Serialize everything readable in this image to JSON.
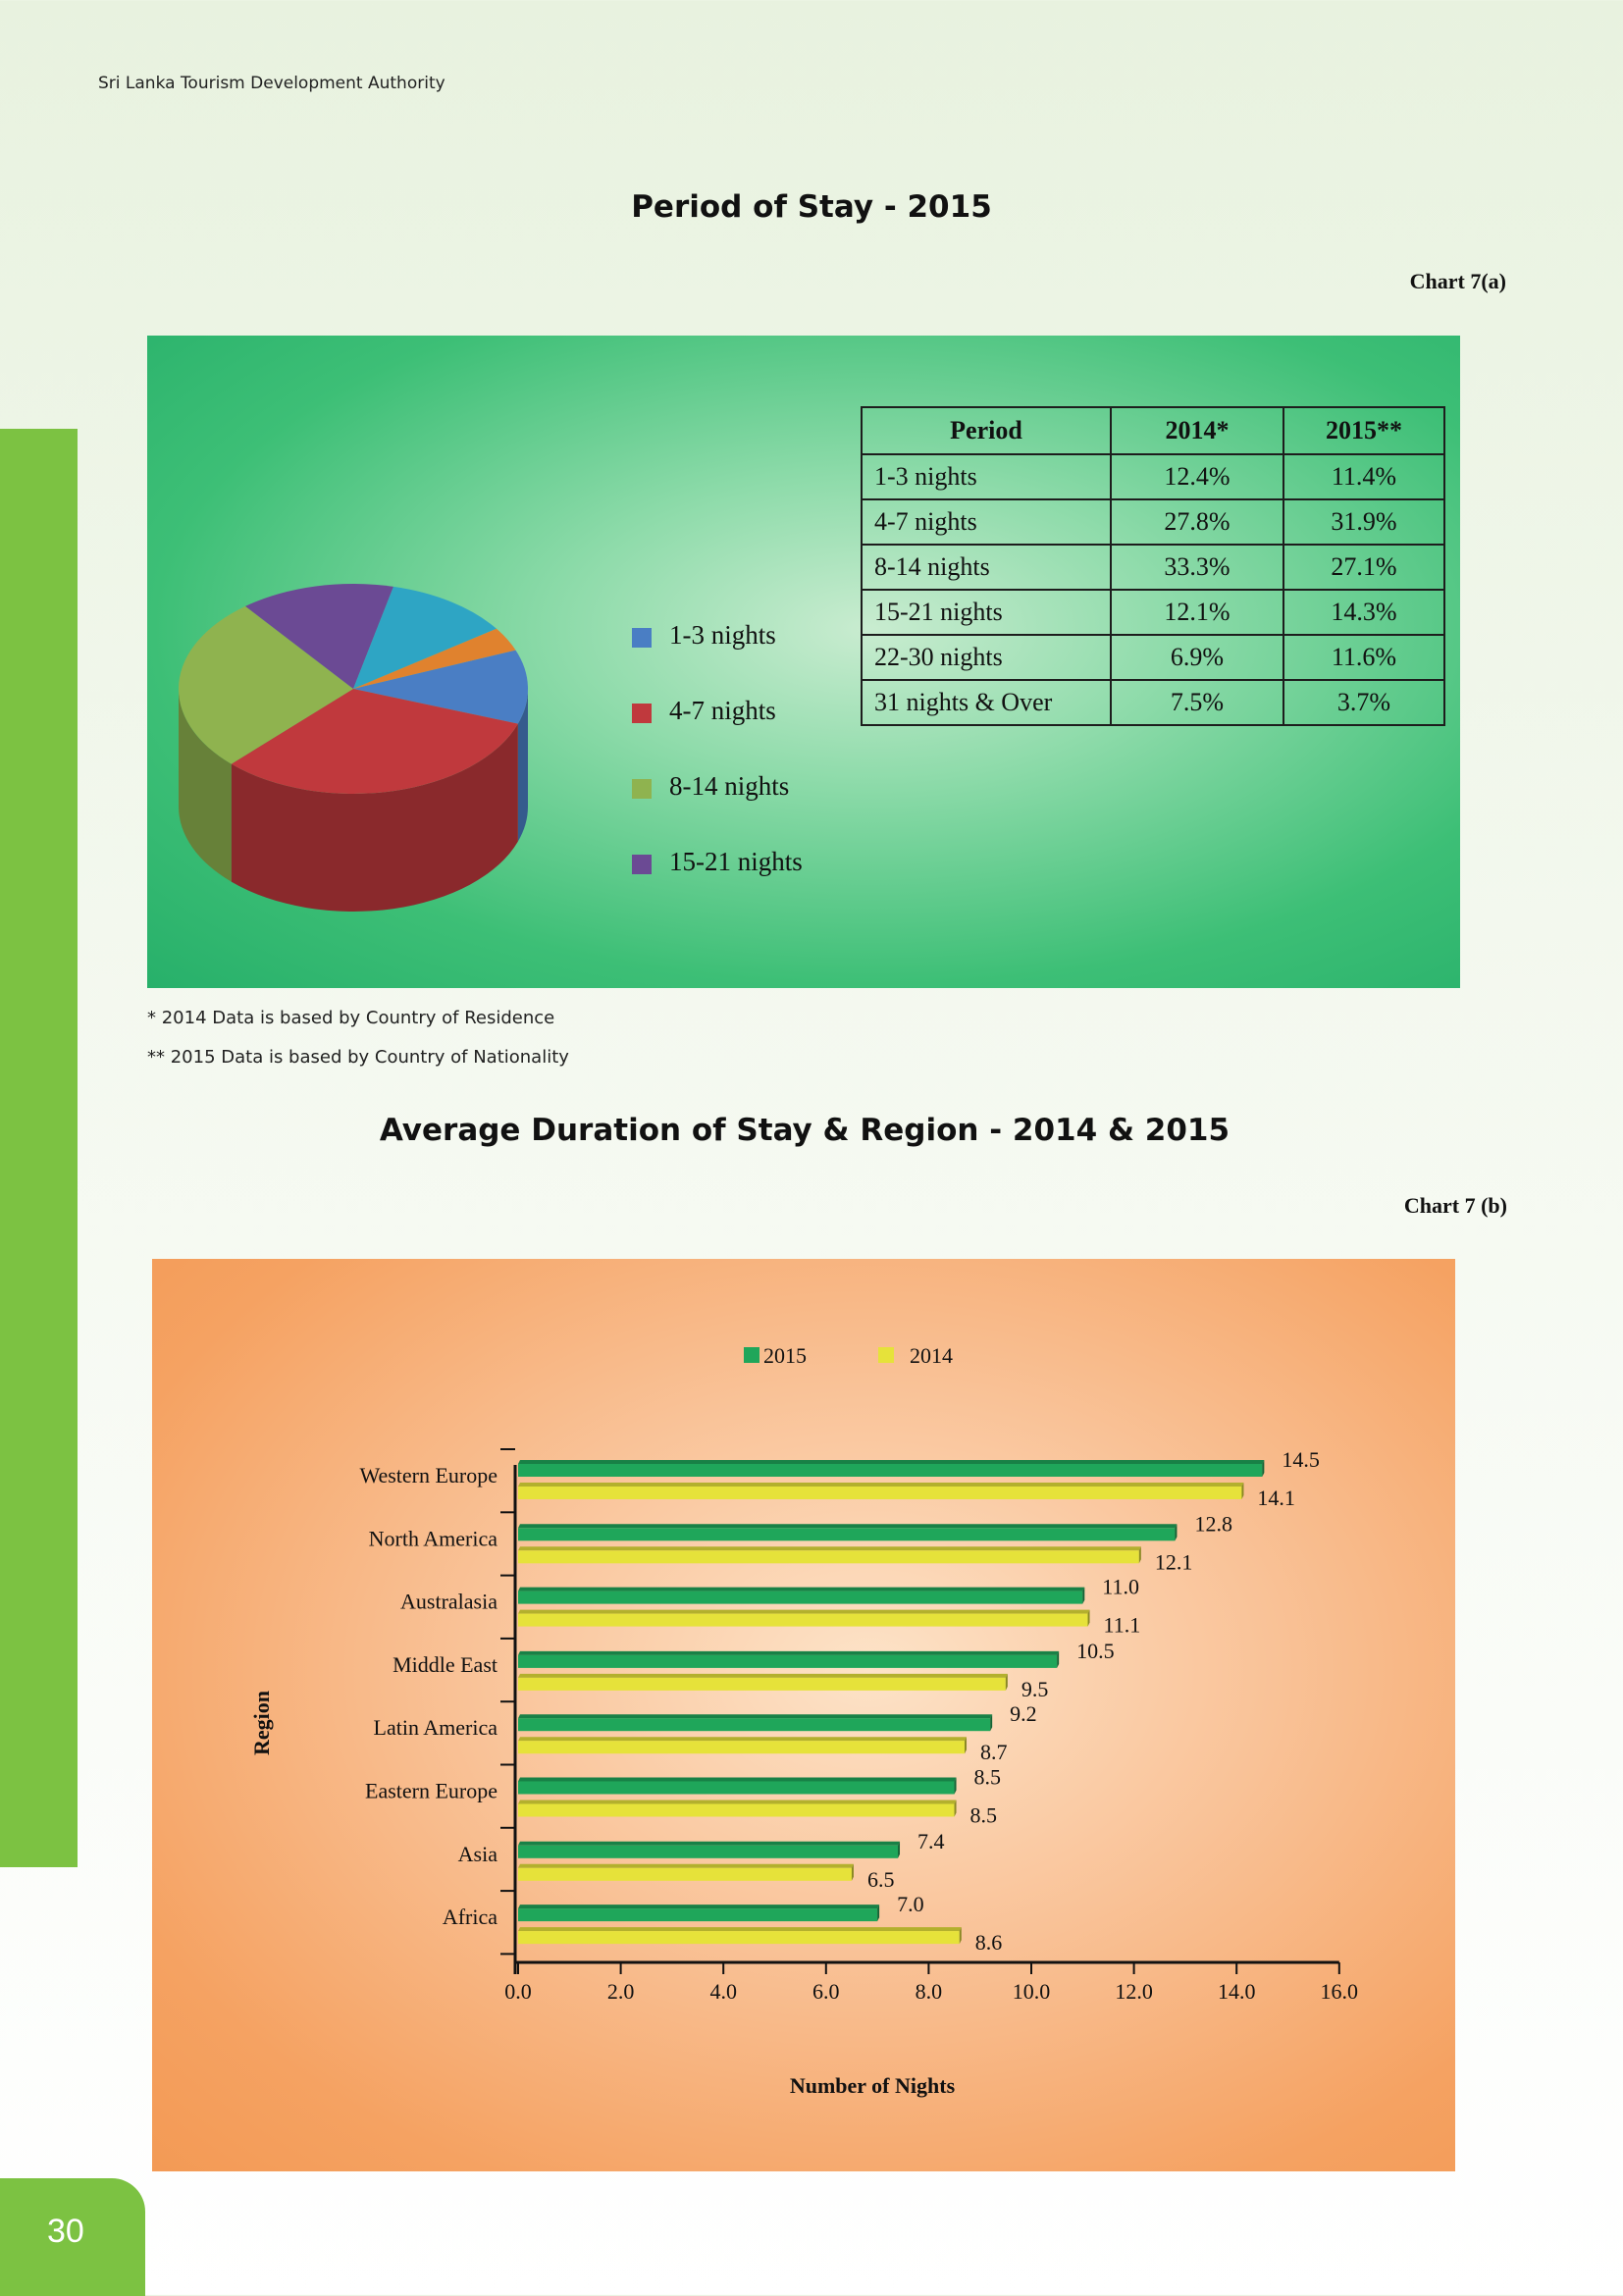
{
  "header": {
    "org": "Sri Lanka Tourism Development Authority"
  },
  "page_number": "30",
  "chart_a": {
    "title": "Period of Stay - 2015",
    "label": "Chart 7(a)",
    "table": {
      "headers": [
        "Period",
        "2014*",
        "2015**"
      ],
      "rows": [
        [
          "1-3 nights",
          "12.4%",
          "11.4%"
        ],
        [
          "4-7 nights",
          "27.8%",
          "31.9%"
        ],
        [
          "8-14 nights",
          "33.3%",
          "27.1%"
        ],
        [
          "15-21 nights",
          "12.1%",
          "14.3%"
        ],
        [
          "22-30 nights",
          "6.9%",
          "11.6%"
        ],
        [
          "31 nights & Over",
          "7.5%",
          "3.7%"
        ]
      ]
    },
    "legend": [
      "1-3 nights",
      "4-7 nights",
      "8-14 nights",
      "15-21 nights"
    ]
  },
  "footnotes": [
    "* 2014 Data is based by Country of Residence",
    "** 2015 Data is based by Country of Nationality"
  ],
  "chart_b": {
    "title": "Average Duration of Stay & Region - 2014 & 2015",
    "label": "Chart 7 (b)"
  },
  "colors": {
    "pie": [
      "#4a7ec4",
      "#c0393d",
      "#8fb34f",
      "#6b4a94",
      "#2ea5c4",
      "#e0822e"
    ],
    "bar_2015": "#1fa65a",
    "bar_2014": "#e6e23a"
  },
  "chart_data": [
    {
      "type": "pie",
      "title": "Period of Stay - 2015",
      "categories": [
        "1-3 nights",
        "4-7 nights",
        "8-14 nights",
        "15-21 nights",
        "22-30 nights",
        "31 nights & Over"
      ],
      "values": [
        11.4,
        31.9,
        27.1,
        14.3,
        11.6,
        3.7
      ],
      "legend_position": "right"
    },
    {
      "type": "bar",
      "orientation": "horizontal",
      "title": "Average Duration of Stay & Region - 2014 & 2015",
      "xlabel": "Number of Nights",
      "ylabel": "Region",
      "categories": [
        "Western Europe",
        "North America",
        "Australasia",
        "Middle East",
        "Latin America",
        "Eastern Europe",
        "Asia",
        "Africa"
      ],
      "series": [
        {
          "name": "2015",
          "values": [
            14.5,
            12.8,
            11.0,
            10.5,
            9.2,
            8.5,
            7.4,
            7.0
          ]
        },
        {
          "name": "2014",
          "values": [
            14.1,
            12.1,
            11.1,
            9.5,
            8.7,
            8.5,
            6.5,
            8.6
          ]
        }
      ],
      "xlim": [
        0,
        16
      ],
      "xticks": [
        "0.0",
        "2.0",
        "4.0",
        "6.0",
        "8.0",
        "10.0",
        "12.0",
        "14.0",
        "16.0"
      ],
      "legend_position": "top"
    }
  ]
}
